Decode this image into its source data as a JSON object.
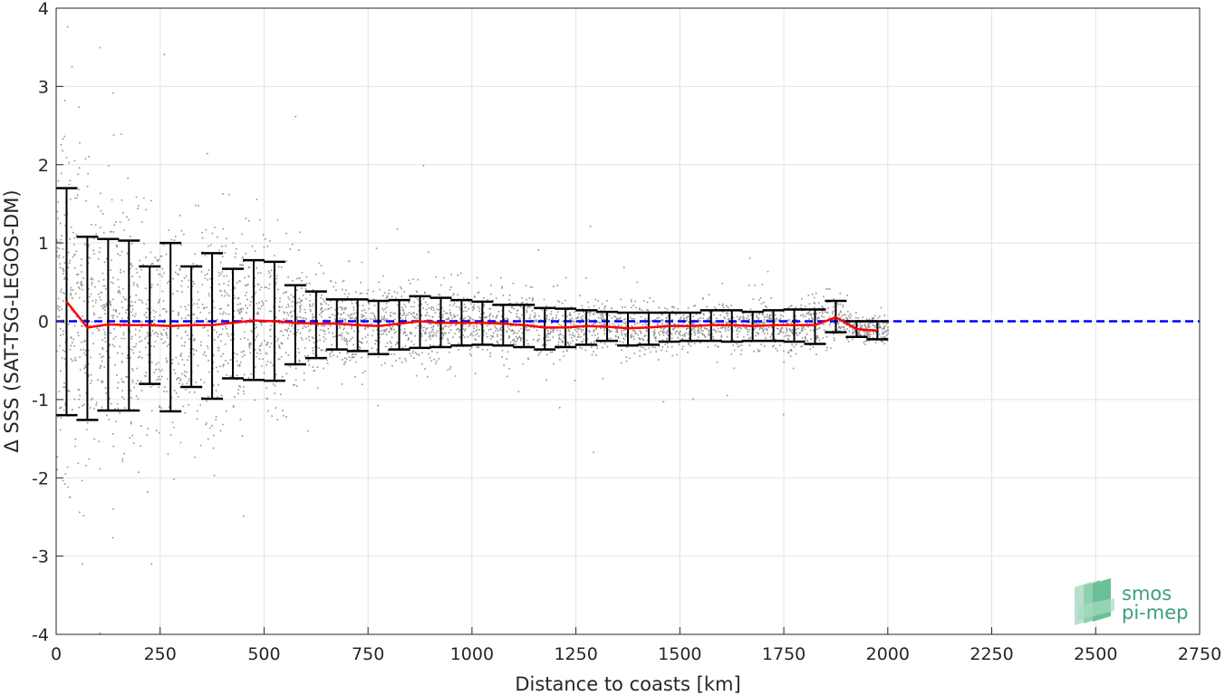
{
  "chart_data": {
    "type": "scatter",
    "title": "",
    "xlabel": "Distance to coasts [km]",
    "ylabel": "Δ SSS (SAT-TSG-LEGOS-DM)",
    "xlim": [
      0,
      2750
    ],
    "ylim": [
      -4,
      4
    ],
    "x_ticks": [
      0,
      250,
      500,
      750,
      1000,
      1250,
      1500,
      1750,
      2000,
      2250,
      2500,
      2750
    ],
    "y_ticks": [
      -4,
      -3,
      -2,
      -1,
      0,
      1,
      2,
      3,
      4
    ],
    "grid": true,
    "colors": {
      "scatter": "#808080",
      "mean_line": "#ff0000",
      "zero_line": "#0000ff",
      "error_bars": "#000000"
    },
    "zero_line": {
      "y": 0,
      "style": "dashed"
    },
    "series": [
      {
        "kind": "binned-mean-with-std-error-bars",
        "x": [
          25,
          75,
          125,
          175,
          225,
          275,
          325,
          375,
          425,
          475,
          525,
          575,
          625,
          675,
          725,
          775,
          825,
          875,
          925,
          975,
          1025,
          1075,
          1125,
          1175,
          1225,
          1275,
          1325,
          1375,
          1425,
          1475,
          1525,
          1575,
          1625,
          1675,
          1725,
          1775,
          1825,
          1875,
          1925,
          1975
        ],
        "mean": [
          0.25,
          -0.08,
          -0.04,
          -0.05,
          -0.05,
          -0.06,
          -0.05,
          -0.05,
          -0.02,
          0.01,
          0.0,
          -0.02,
          -0.03,
          -0.03,
          -0.05,
          -0.06,
          -0.03,
          0.0,
          -0.02,
          -0.02,
          -0.02,
          -0.03,
          -0.05,
          -0.08,
          -0.08,
          -0.06,
          -0.07,
          -0.09,
          -0.08,
          -0.06,
          -0.06,
          -0.05,
          -0.05,
          -0.06,
          -0.05,
          -0.05,
          -0.05,
          0.05,
          -0.1,
          -0.12
        ],
        "upper": [
          1.7,
          1.08,
          1.05,
          1.03,
          0.7,
          1.0,
          0.7,
          0.87,
          0.67,
          0.78,
          0.76,
          0.46,
          0.38,
          0.28,
          0.28,
          0.26,
          0.27,
          0.32,
          0.3,
          0.27,
          0.25,
          0.21,
          0.21,
          0.17,
          0.16,
          0.14,
          0.12,
          0.11,
          0.11,
          0.11,
          0.11,
          0.14,
          0.14,
          0.12,
          0.14,
          0.15,
          0.15,
          0.26,
          0.0,
          0.0
        ],
        "lower": [
          -1.2,
          -1.26,
          -1.14,
          -1.14,
          -0.8,
          -1.15,
          -0.84,
          -0.99,
          -0.73,
          -0.75,
          -0.76,
          -0.55,
          -0.47,
          -0.36,
          -0.38,
          -0.42,
          -0.36,
          -0.34,
          -0.33,
          -0.31,
          -0.3,
          -0.31,
          -0.33,
          -0.36,
          -0.33,
          -0.3,
          -0.25,
          -0.31,
          -0.3,
          -0.26,
          -0.25,
          -0.25,
          -0.26,
          -0.25,
          -0.25,
          -0.26,
          -0.29,
          -0.14,
          -0.2,
          -0.23
        ]
      }
    ],
    "scatter_spread": {
      "description": "dense gray measurement points",
      "x_range": [
        0,
        2000
      ]
    }
  },
  "logo": {
    "line1": "smos",
    "line2": "pi-mep"
  }
}
